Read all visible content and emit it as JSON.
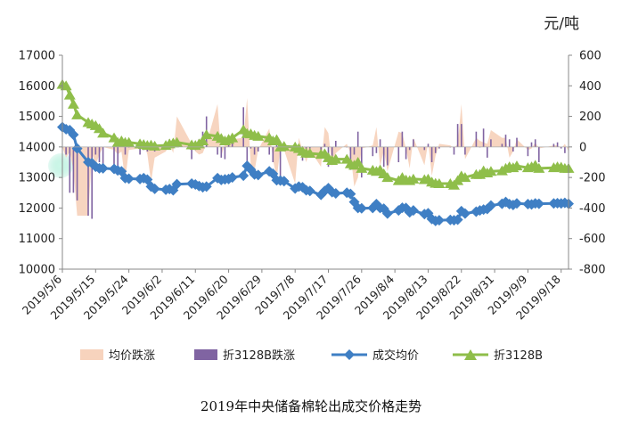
{
  "unit_label": "元/吨",
  "footer_title": "2019年中央储备棉轮出成交价格走势",
  "chart_data": {
    "type": "line",
    "title": "2019年中央储备棉轮出成交价格走势",
    "xlabel": "",
    "ylabel": "",
    "y_right_label": "元/吨",
    "x_tick_labels": [
      "2019/5/6",
      "2019/5/15",
      "2019/5/24",
      "2019/6/2",
      "2019/6/11",
      "2019/6/20",
      "2019/6/29",
      "2019/7/8",
      "2019/7/17",
      "2019/7/26",
      "2019/8/4",
      "2019/8/13",
      "2019/8/22",
      "2019/8/31",
      "2019/9/9",
      "2019/9/18"
    ],
    "x_range": [
      "2019/5/6",
      "2019/9/20"
    ],
    "ylim_left": [
      10000,
      17000
    ],
    "yticks_left": [
      10000,
      11000,
      12000,
      13000,
      14000,
      15000,
      16000,
      17000
    ],
    "ylim_right": [
      -800,
      600
    ],
    "yticks_right": [
      -800,
      -600,
      -400,
      -200,
      0,
      200,
      400,
      600
    ],
    "grid": false,
    "legend_position": "bottom",
    "series": [
      {
        "name": "成交均价",
        "axis": "left",
        "kind": "line-diamond",
        "color": "#3f7fc4",
        "x": [
          "2019/5/6",
          "2019/5/7",
          "2019/5/8",
          "2019/5/9",
          "2019/5/10",
          "2019/5/13",
          "2019/5/14",
          "2019/5/15",
          "2019/5/16",
          "2019/5/17",
          "2019/5/20",
          "2019/5/21",
          "2019/5/22",
          "2019/5/23",
          "2019/5/24",
          "2019/5/27",
          "2019/5/28",
          "2019/5/29",
          "2019/5/30",
          "2019/5/31",
          "2019/6/3",
          "2019/6/4",
          "2019/6/5",
          "2019/6/6",
          "2019/6/10",
          "2019/6/11",
          "2019/6/12",
          "2019/6/13",
          "2019/6/14",
          "2019/6/17",
          "2019/6/18",
          "2019/6/19",
          "2019/6/20",
          "2019/6/21",
          "2019/6/24",
          "2019/6/25",
          "2019/6/26",
          "2019/6/27",
          "2019/6/28",
          "2019/7/1",
          "2019/7/2",
          "2019/7/3",
          "2019/7/4",
          "2019/7/5",
          "2019/7/8",
          "2019/7/9",
          "2019/7/10",
          "2019/7/11",
          "2019/7/12",
          "2019/7/15",
          "2019/7/16",
          "2019/7/17",
          "2019/7/18",
          "2019/7/19",
          "2019/7/22",
          "2019/7/23",
          "2019/7/24",
          "2019/7/25",
          "2019/7/26",
          "2019/7/29",
          "2019/7/30",
          "2019/7/31",
          "2019/8/1",
          "2019/8/2",
          "2019/8/5",
          "2019/8/6",
          "2019/8/7",
          "2019/8/8",
          "2019/8/9",
          "2019/8/12",
          "2019/8/13",
          "2019/8/14",
          "2019/8/15",
          "2019/8/16",
          "2019/8/19",
          "2019/8/20",
          "2019/8/21",
          "2019/8/22",
          "2019/8/23",
          "2019/8/26",
          "2019/8/27",
          "2019/8/28",
          "2019/8/29",
          "2019/8/30",
          "2019/9/2",
          "2019/9/3",
          "2019/9/4",
          "2019/9/5",
          "2019/9/6",
          "2019/9/9",
          "2019/9/10",
          "2019/9/11",
          "2019/9/12",
          "2019/9/16",
          "2019/9/17",
          "2019/9/18",
          "2019/9/19",
          "2019/9/20"
        ],
        "values": [
          14650,
          14580,
          14550,
          14400,
          13950,
          13500,
          13470,
          13350,
          13300,
          13300,
          13280,
          13230,
          13200,
          12980,
          12960,
          12950,
          12980,
          12930,
          12700,
          12630,
          12600,
          12620,
          12580,
          12780,
          12800,
          12770,
          12720,
          12680,
          12700,
          12980,
          12920,
          12940,
          12950,
          13000,
          13060,
          13380,
          13260,
          13100,
          13080,
          13200,
          13120,
          12910,
          12900,
          12880,
          12640,
          12700,
          12680,
          12580,
          12560,
          12430,
          12560,
          12650,
          12520,
          12480,
          12500,
          12460,
          12200,
          12000,
          11990,
          12000,
          12130,
          12000,
          11980,
          11820,
          11920,
          12010,
          12000,
          11860,
          11920,
          11800,
          11830,
          11640,
          11580,
          11600,
          11610,
          11600,
          11620,
          11900,
          11820,
          11880,
          11920,
          11950,
          11970,
          12080,
          12140,
          12200,
          12130,
          12100,
          12150,
          12130,
          12120,
          12150,
          12140,
          12150,
          12160,
          12150,
          12170,
          12140
        ]
      },
      {
        "name": "折3128B",
        "axis": "left",
        "kind": "line-triangle",
        "color": "#8fbe4a",
        "x": [
          "2019/5/6",
          "2019/5/7",
          "2019/5/8",
          "2019/5/9",
          "2019/5/10",
          "2019/5/13",
          "2019/5/14",
          "2019/5/15",
          "2019/5/16",
          "2019/5/17",
          "2019/5/20",
          "2019/5/21",
          "2019/5/22",
          "2019/5/23",
          "2019/5/24",
          "2019/5/27",
          "2019/5/28",
          "2019/5/29",
          "2019/5/30",
          "2019/5/31",
          "2019/6/3",
          "2019/6/4",
          "2019/6/5",
          "2019/6/6",
          "2019/6/10",
          "2019/6/11",
          "2019/6/12",
          "2019/6/13",
          "2019/6/14",
          "2019/6/17",
          "2019/6/18",
          "2019/6/19",
          "2019/6/20",
          "2019/6/21",
          "2019/6/24",
          "2019/6/25",
          "2019/6/26",
          "2019/6/27",
          "2019/6/28",
          "2019/7/1",
          "2019/7/2",
          "2019/7/3",
          "2019/7/4",
          "2019/7/5",
          "2019/7/8",
          "2019/7/9",
          "2019/7/10",
          "2019/7/11",
          "2019/7/12",
          "2019/7/15",
          "2019/7/16",
          "2019/7/17",
          "2019/7/18",
          "2019/7/19",
          "2019/7/22",
          "2019/7/23",
          "2019/7/24",
          "2019/7/25",
          "2019/7/26",
          "2019/7/29",
          "2019/7/30",
          "2019/7/31",
          "2019/8/1",
          "2019/8/2",
          "2019/8/5",
          "2019/8/6",
          "2019/8/7",
          "2019/8/8",
          "2019/8/9",
          "2019/8/12",
          "2019/8/13",
          "2019/8/14",
          "2019/8/15",
          "2019/8/16",
          "2019/8/19",
          "2019/8/20",
          "2019/8/21",
          "2019/8/22",
          "2019/8/23",
          "2019/8/26",
          "2019/8/27",
          "2019/8/28",
          "2019/8/29",
          "2019/8/30",
          "2019/9/2",
          "2019/9/3",
          "2019/9/4",
          "2019/9/5",
          "2019/9/6",
          "2019/9/9",
          "2019/9/10",
          "2019/9/11",
          "2019/9/12",
          "2019/9/16",
          "2019/9/17",
          "2019/9/18",
          "2019/9/19",
          "2019/9/20"
        ],
        "values": [
          16050,
          16000,
          15700,
          15400,
          15050,
          14800,
          14750,
          14700,
          14600,
          14450,
          14300,
          14150,
          14200,
          14150,
          14150,
          14100,
          14080,
          14050,
          14060,
          14030,
          14050,
          14100,
          14130,
          14150,
          14070,
          14050,
          14100,
          14200,
          14400,
          14350,
          14280,
          14200,
          14250,
          14300,
          14560,
          14440,
          14430,
          14380,
          14350,
          14300,
          14200,
          14240,
          14000,
          14020,
          14000,
          13950,
          13860,
          13800,
          13790,
          13760,
          13780,
          13650,
          13560,
          13600,
          13600,
          13450,
          13400,
          13500,
          13300,
          13240,
          13200,
          13250,
          13120,
          13000,
          12900,
          13000,
          12920,
          12900,
          12950,
          12930,
          12950,
          12850,
          12810,
          12800,
          12800,
          12750,
          12900,
          13050,
          13000,
          13100,
          13100,
          13220,
          13150,
          13200,
          13220,
          13300,
          13350,
          13320,
          13380,
          13320,
          13350,
          13400,
          13300,
          13320,
          13350,
          13340,
          13300,
          13300
        ]
      },
      {
        "name": "均价跌涨",
        "axis": "right",
        "kind": "area",
        "color": "#f7d3bd",
        "x": [
          "2019/5/6",
          "2019/5/7",
          "2019/5/8",
          "2019/5/9",
          "2019/5/10",
          "2019/5/13",
          "2019/5/14",
          "2019/5/15",
          "2019/5/16",
          "2019/5/17",
          "2019/5/20",
          "2019/5/21",
          "2019/5/22",
          "2019/5/23",
          "2019/5/24",
          "2019/5/27",
          "2019/5/28",
          "2019/5/29",
          "2019/5/30",
          "2019/5/31",
          "2019/6/3",
          "2019/6/4",
          "2019/6/5",
          "2019/6/6",
          "2019/6/10",
          "2019/6/11",
          "2019/6/12",
          "2019/6/13",
          "2019/6/14",
          "2019/6/17",
          "2019/6/18",
          "2019/6/19",
          "2019/6/20",
          "2019/6/21",
          "2019/6/24",
          "2019/6/25",
          "2019/6/26",
          "2019/6/27",
          "2019/6/28",
          "2019/7/1",
          "2019/7/2",
          "2019/7/3",
          "2019/7/4",
          "2019/7/5",
          "2019/7/8",
          "2019/7/9",
          "2019/7/10",
          "2019/7/11",
          "2019/7/12",
          "2019/7/15",
          "2019/7/16",
          "2019/7/17",
          "2019/7/18",
          "2019/7/19",
          "2019/7/22",
          "2019/7/23",
          "2019/7/24",
          "2019/7/25",
          "2019/7/26",
          "2019/7/29",
          "2019/7/30",
          "2019/7/31",
          "2019/8/1",
          "2019/8/2",
          "2019/8/5",
          "2019/8/6",
          "2019/8/7",
          "2019/8/8",
          "2019/8/9",
          "2019/8/12",
          "2019/8/13",
          "2019/8/14",
          "2019/8/15",
          "2019/8/16",
          "2019/8/19",
          "2019/8/20",
          "2019/8/21",
          "2019/8/22",
          "2019/8/23",
          "2019/8/26",
          "2019/8/27",
          "2019/8/28",
          "2019/8/29",
          "2019/8/30",
          "2019/9/2",
          "2019/9/3",
          "2019/9/4",
          "2019/9/5",
          "2019/9/6",
          "2019/9/9",
          "2019/9/10",
          "2019/9/11",
          "2019/9/12",
          "2019/9/16",
          "2019/9/17",
          "2019/9/18",
          "2019/9/19",
          "2019/9/20"
        ],
        "values": [
          0,
          -70,
          -30,
          -150,
          -450,
          -450,
          -40,
          -120,
          -50,
          0,
          -20,
          -50,
          -30,
          -220,
          -20,
          -10,
          30,
          -50,
          -230,
          -70,
          -30,
          20,
          -40,
          200,
          20,
          -30,
          -50,
          -40,
          20,
          280,
          -60,
          20,
          10,
          50,
          60,
          320,
          -120,
          -160,
          -20,
          120,
          -80,
          -210,
          -10,
          -20,
          -240,
          60,
          -20,
          -100,
          -20,
          -130,
          130,
          90,
          -130,
          -40,
          20,
          -40,
          -260,
          -200,
          -10,
          10,
          130,
          -130,
          -20,
          -160,
          100,
          90,
          -10,
          -140,
          60,
          -120,
          30,
          -190,
          -60,
          20,
          10,
          -10,
          20,
          280,
          -80,
          60,
          40,
          30,
          20,
          110,
          60,
          60,
          -70,
          -30,
          50,
          -20,
          -10,
          30,
          -10,
          10,
          10,
          -10,
          20,
          -30
        ]
      },
      {
        "name": "折3128B跌涨",
        "axis": "right",
        "kind": "bar",
        "color": "#8064a2",
        "x": [
          "2019/5/6",
          "2019/5/7",
          "2019/5/8",
          "2019/5/9",
          "2019/5/10",
          "2019/5/13",
          "2019/5/14",
          "2019/5/15",
          "2019/5/16",
          "2019/5/17",
          "2019/5/20",
          "2019/5/21",
          "2019/5/22",
          "2019/5/23",
          "2019/5/24",
          "2019/5/27",
          "2019/5/28",
          "2019/5/29",
          "2019/5/30",
          "2019/5/31",
          "2019/6/3",
          "2019/6/4",
          "2019/6/5",
          "2019/6/6",
          "2019/6/10",
          "2019/6/11",
          "2019/6/12",
          "2019/6/13",
          "2019/6/14",
          "2019/6/17",
          "2019/6/18",
          "2019/6/19",
          "2019/6/20",
          "2019/6/21",
          "2019/6/24",
          "2019/6/25",
          "2019/6/26",
          "2019/6/27",
          "2019/6/28",
          "2019/7/1",
          "2019/7/2",
          "2019/7/3",
          "2019/7/4",
          "2019/7/5",
          "2019/7/8",
          "2019/7/9",
          "2019/7/10",
          "2019/7/11",
          "2019/7/12",
          "2019/7/15",
          "2019/7/16",
          "2019/7/17",
          "2019/7/18",
          "2019/7/19",
          "2019/7/22",
          "2019/7/23",
          "2019/7/24",
          "2019/7/25",
          "2019/7/26",
          "2019/7/29",
          "2019/7/30",
          "2019/7/31",
          "2019/8/1",
          "2019/8/2",
          "2019/8/5",
          "2019/8/6",
          "2019/8/7",
          "2019/8/8",
          "2019/8/9",
          "2019/8/12",
          "2019/8/13",
          "2019/8/14",
          "2019/8/15",
          "2019/8/16",
          "2019/8/19",
          "2019/8/20",
          "2019/8/21",
          "2019/8/22",
          "2019/8/23",
          "2019/8/26",
          "2019/8/27",
          "2019/8/28",
          "2019/8/29",
          "2019/8/30",
          "2019/9/2",
          "2019/9/3",
          "2019/9/4",
          "2019/9/5",
          "2019/9/6",
          "2019/9/9",
          "2019/9/10",
          "2019/9/11",
          "2019/9/12",
          "2019/9/16",
          "2019/9/17",
          "2019/9/18",
          "2019/9/19",
          "2019/9/20"
        ],
        "values": [
          0,
          -50,
          -300,
          -300,
          -350,
          -450,
          -470,
          -50,
          -100,
          -150,
          -150,
          -150,
          50,
          -50,
          0,
          -50,
          -20,
          -30,
          10,
          -30,
          20,
          50,
          30,
          20,
          -80,
          -20,
          50,
          100,
          200,
          -50,
          -70,
          -80,
          50,
          50,
          260,
          -120,
          -10,
          -50,
          -30,
          -50,
          -100,
          40,
          -240,
          20,
          -20,
          -50,
          -90,
          -60,
          -10,
          -30,
          20,
          -130,
          -90,
          40,
          0,
          -150,
          -50,
          100,
          -200,
          -60,
          -40,
          50,
          -130,
          -120,
          -100,
          100,
          -80,
          -20,
          50,
          -20,
          20,
          -100,
          -40,
          -10,
          0,
          -50,
          150,
          150,
          -50,
          100,
          0,
          120,
          -70,
          50,
          20,
          80,
          50,
          -30,
          60,
          -60,
          30,
          50,
          -100,
          20,
          30,
          -10,
          -40,
          0
        ]
      }
    ]
  }
}
